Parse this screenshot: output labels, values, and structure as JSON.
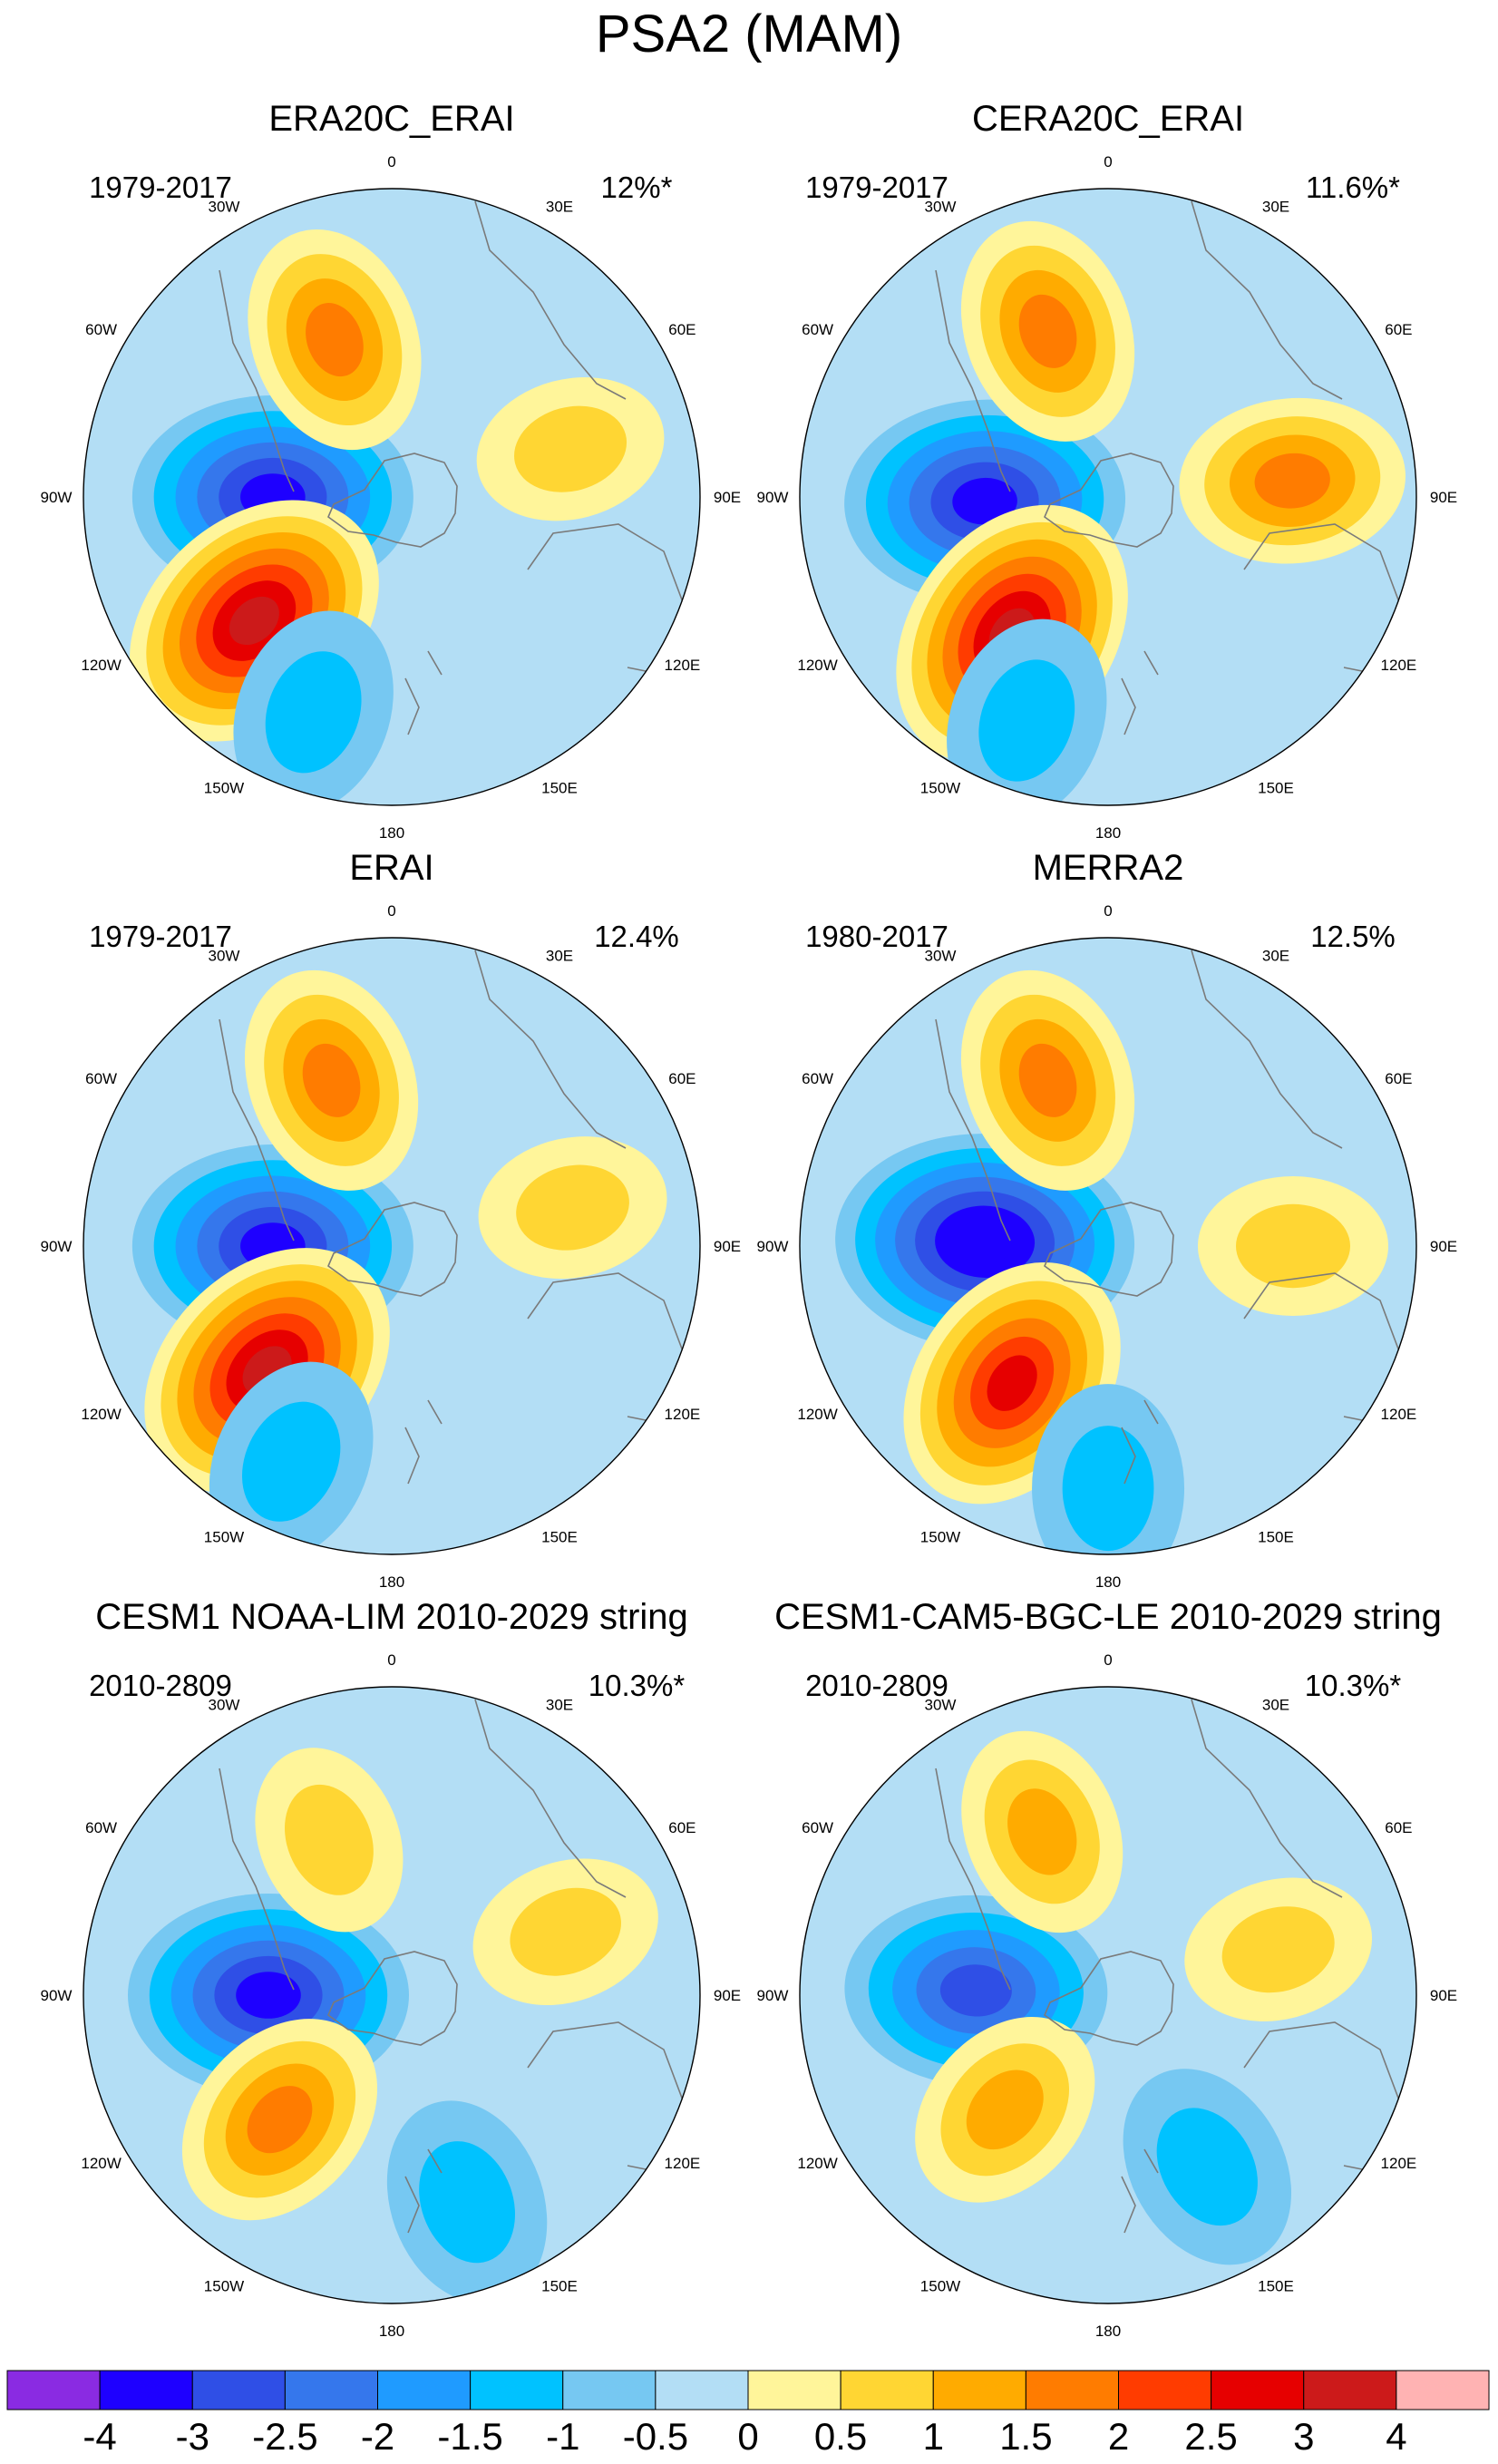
{
  "chart_data": {
    "type": "polar-contour-map",
    "title": "PSA2 (MAM)",
    "projection": "south-polar-stereographic",
    "longitude_labels": [
      "0",
      "30E",
      "60E",
      "90E",
      "120E",
      "150E",
      "180",
      "150W",
      "120W",
      "90W",
      "60W",
      "30W"
    ],
    "panels": [
      {
        "id": "era20c",
        "title": "ERA20C_ERAI",
        "period": "1979-2017",
        "variance": "12%*",
        "centers": [
          {
            "name": "neg-center",
            "lon": 270,
            "lat": -63,
            "value": -3.0
          },
          {
            "name": "pos-atlantic-center",
            "lon": 340,
            "lat": -52,
            "value": 1.5
          },
          {
            "name": "pos-pacific-center",
            "lon": 228,
            "lat": -48,
            "value": 3.0
          },
          {
            "name": "pos-indian-center",
            "lon": 75,
            "lat": -48,
            "value": 0.5
          },
          {
            "name": "neg-south-pacific-band",
            "lon": 200,
            "lat": -38,
            "value": -1.0
          }
        ]
      },
      {
        "id": "cera20c",
        "title": "CERA20C_ERAI",
        "period": "1979-2017",
        "variance": "11.6%*",
        "centers": [
          {
            "name": "neg-center",
            "lon": 268,
            "lat": -62,
            "value": -3.0
          },
          {
            "name": "pos-atlantic-center",
            "lon": 340,
            "lat": -50,
            "value": 1.5
          },
          {
            "name": "pos-pacific-center",
            "lon": 215,
            "lat": -52,
            "value": 3.0
          },
          {
            "name": "pos-indian-center",
            "lon": 85,
            "lat": -48,
            "value": 1.5
          },
          {
            "name": "neg-south-pacific-band",
            "lon": 200,
            "lat": -36,
            "value": -1.0
          }
        ]
      },
      {
        "id": "erai",
        "title": "ERAI",
        "period": "1979-2017",
        "variance": "12.4%",
        "centers": [
          {
            "name": "neg-center",
            "lon": 270,
            "lat": -63,
            "value": -3.0
          },
          {
            "name": "pos-atlantic-center",
            "lon": 340,
            "lat": -50,
            "value": 1.5
          },
          {
            "name": "pos-pacific-center",
            "lon": 225,
            "lat": -50,
            "value": 3.0
          },
          {
            "name": "pos-indian-center",
            "lon": 78,
            "lat": -48,
            "value": 0.5
          },
          {
            "name": "neg-south-pacific-band",
            "lon": 205,
            "lat": -36,
            "value": -1.0
          }
        ]
      },
      {
        "id": "merra2",
        "title": "MERRA2",
        "period": "1980-2017",
        "variance": "12.5%",
        "centers": [
          {
            "name": "neg-center",
            "lon": 272,
            "lat": -62,
            "value": -3.5
          },
          {
            "name": "pos-atlantic-center",
            "lon": 340,
            "lat": -50,
            "value": 1.5
          },
          {
            "name": "pos-pacific-center",
            "lon": 215,
            "lat": -52,
            "value": 2.5
          },
          {
            "name": "pos-indian-center",
            "lon": 90,
            "lat": -48,
            "value": 0.5
          },
          {
            "name": "neg-south-pacific-band",
            "lon": 180,
            "lat": -35,
            "value": -1.0
          }
        ]
      },
      {
        "id": "cesm1-noaa",
        "title": "CESM1 NOAA-LIM 2010-2029 string",
        "period": "2010-2809",
        "variance": "10.3%*",
        "centers": [
          {
            "name": "neg-center",
            "lon": 270,
            "lat": -62,
            "value": -3.0
          },
          {
            "name": "pos-atlantic-center",
            "lon": 338,
            "lat": -52,
            "value": 0.5
          },
          {
            "name": "pos-pacific-center",
            "lon": 222,
            "lat": -52,
            "value": 1.5
          },
          {
            "name": "pos-indian-center",
            "lon": 70,
            "lat": -48,
            "value": 0.5
          },
          {
            "name": "neg-south-pacific-band",
            "lon": 160,
            "lat": -40,
            "value": -1.0
          }
        ]
      },
      {
        "id": "cesm1-cam5",
        "title": "CESM1-CAM5-BGC-LE 2010-2029 string",
        "period": "2010-2809",
        "variance": "10.3%*",
        "centers": [
          {
            "name": "neg-center",
            "lon": 272,
            "lat": -60,
            "value": -2.5
          },
          {
            "name": "pos-atlantic-center",
            "lon": 338,
            "lat": -50,
            "value": 1.0
          },
          {
            "name": "pos-pacific-center",
            "lon": 222,
            "lat": -55,
            "value": 1.0
          },
          {
            "name": "pos-indian-center",
            "lon": 75,
            "lat": -50,
            "value": 0.5
          },
          {
            "name": "neg-south-pacific-band",
            "lon": 150,
            "lat": -45,
            "value": -1.0
          }
        ]
      }
    ],
    "colorbar": {
      "labels": [
        "-4",
        "-3",
        "-2.5",
        "-2",
        "-1.5",
        "-1",
        "-0.5",
        "0",
        "0.5",
        "1",
        "1.5",
        "2",
        "2.5",
        "3",
        "4"
      ],
      "colors": [
        "#8a2be2",
        "#1e00ff",
        "#2f4fe6",
        "#3577ec",
        "#1f9bff",
        "#00c2ff",
        "#76c8f2",
        "#b3def5",
        "#fff59a",
        "#ffd633",
        "#ffab00",
        "#ff7c00",
        "#ff3c00",
        "#e60000",
        "#cc1a1a",
        "#ffb3b3"
      ]
    }
  }
}
